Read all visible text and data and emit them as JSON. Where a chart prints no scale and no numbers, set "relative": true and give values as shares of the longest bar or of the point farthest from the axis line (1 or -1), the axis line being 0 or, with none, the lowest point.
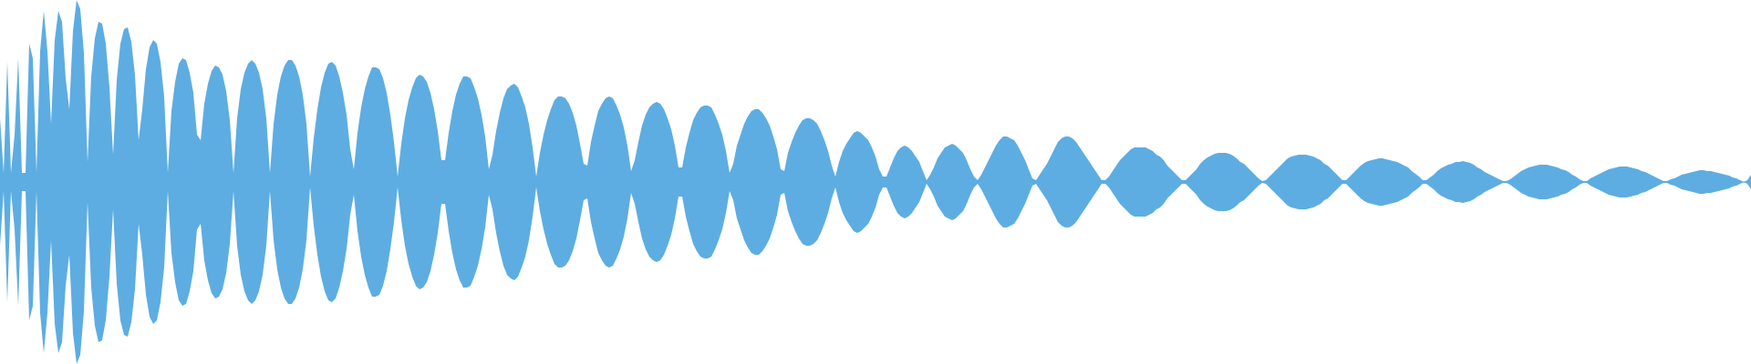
{
  "chart_data": {
    "type": "area",
    "relative": true,
    "ref_lines": [
      {
        "axis": "y",
        "value": 0,
        "color": "#5dade2"
      }
    ],
    "categories": [
      null,
      null,
      null,
      null,
      null,
      null,
      null,
      null,
      null,
      null,
      null,
      null,
      null,
      null,
      null,
      null,
      null,
      null,
      null,
      null,
      null,
      null,
      null,
      null,
      null,
      null,
      null,
      null,
      null,
      null,
      null,
      null,
      null,
      null,
      null,
      null,
      null,
      null,
      null,
      null,
      null,
      null,
      null,
      null,
      null,
      null,
      null,
      null,
      null,
      null,
      null,
      null,
      null,
      null,
      null,
      null,
      null,
      null,
      null,
      null,
      null,
      null,
      null,
      null,
      null,
      null,
      null,
      null,
      null,
      null,
      null,
      null,
      null,
      null,
      null,
      null,
      null,
      null,
      null,
      null,
      null,
      null,
      null,
      null,
      null,
      null,
      null,
      null,
      null,
      null,
      null,
      null,
      null,
      null,
      null,
      null,
      null,
      null,
      null,
      null,
      null,
      null,
      null,
      null,
      null,
      null,
      null,
      null,
      null,
      null,
      null,
      null,
      null,
      null,
      null,
      null,
      null,
      null,
      null,
      null,
      null,
      null,
      null,
      null,
      null,
      null,
      null,
      null,
      null,
      null,
      null,
      null,
      null,
      null,
      null,
      null,
      null,
      null,
      null,
      null,
      null,
      null,
      null,
      null,
      null,
      null,
      null,
      null,
      null,
      null,
      null,
      null,
      null,
      null,
      null,
      null,
      null,
      null,
      null,
      null,
      null,
      null,
      null,
      null,
      null,
      null,
      null,
      null,
      null,
      null,
      null,
      null,
      null,
      null,
      null,
      null,
      null,
      null,
      null,
      null,
      null,
      null,
      null,
      null,
      null,
      null,
      null,
      null,
      null,
      null,
      null,
      null,
      null,
      null,
      null,
      null,
      null,
      null,
      null,
      null,
      null,
      null,
      null,
      null,
      null,
      null,
      null,
      null,
      null,
      null,
      null,
      null,
      null,
      null,
      null,
      null,
      null,
      null,
      null,
      null,
      null,
      null,
      null,
      null,
      null,
      null,
      null,
      null,
      null,
      null,
      null,
      null,
      null,
      null,
      null,
      null,
      null,
      null,
      null,
      null,
      null,
      null,
      null,
      null,
      null,
      null,
      null,
      null,
      null,
      null,
      null,
      null,
      null,
      null,
      null,
      null,
      null,
      null,
      null,
      null,
      null,
      null,
      null,
      null,
      null,
      null,
      null,
      null,
      null,
      null,
      null,
      null,
      null,
      null,
      null,
      null,
      null,
      null,
      null,
      null,
      null,
      null,
      null,
      null,
      null,
      null,
      null,
      null,
      null,
      null,
      null,
      null,
      null,
      null,
      null,
      null,
      null,
      null,
      null,
      null,
      null,
      null,
      null,
      null,
      null,
      null,
      null,
      null,
      null,
      null,
      null,
      null,
      null,
      null,
      null,
      null,
      null,
      null,
      null,
      null,
      null,
      null,
      null,
      null,
      null,
      null,
      null,
      null,
      null,
      null,
      null,
      null,
      null,
      null,
      null,
      null,
      null,
      null,
      null,
      null,
      null,
      null,
      null,
      null,
      null,
      null,
      null,
      null,
      null,
      null,
      null,
      null,
      null,
      null,
      null,
      null,
      null,
      null,
      null,
      null,
      null,
      null,
      null,
      null,
      null,
      null,
      null,
      null,
      null,
      null,
      null,
      null,
      null,
      null,
      null,
      null,
      null,
      null,
      null,
      null,
      null,
      null,
      null,
      null,
      null,
      null,
      null,
      null,
      null,
      null,
      null,
      null,
      null,
      null,
      null,
      null,
      null,
      null,
      null,
      null,
      null,
      null,
      null,
      null,
      null,
      null,
      null,
      null,
      null,
      null,
      null,
      null,
      null,
      null,
      null,
      null,
      null,
      null,
      null,
      null,
      null,
      null,
      null,
      null,
      null,
      null,
      null,
      null,
      null,
      null,
      null,
      null,
      null,
      null,
      null,
      null,
      null,
      null,
      null,
      null,
      null,
      null,
      null,
      null,
      null,
      null,
      null,
      null,
      null,
      null,
      null,
      null,
      null,
      null,
      null,
      null,
      null,
      null,
      null,
      null,
      null,
      null,
      null,
      null,
      null,
      null,
      null,
      null,
      null,
      null,
      null,
      null,
      null,
      null,
      null,
      null,
      null,
      null,
      null,
      null,
      null
    ],
    "series": [
      {
        "color": "#5dade2",
        "values": [
          0.35,
          0.05,
          0.66,
          0.05,
          0.26,
          0.68,
          0.05,
          0.05,
          0.76,
          0.68,
          0.05,
          0.72,
          0.94,
          0.72,
          0.32,
          0.78,
          0.94,
          0.88,
          0.57,
          0.4,
          0.83,
          1.0,
          0.95,
          0.71,
          0.11,
          0.58,
          0.79,
          0.88,
          0.87,
          0.76,
          0.52,
          0.15,
          0.56,
          0.76,
          0.84,
          0.85,
          0.77,
          0.59,
          0.23,
          0.4,
          0.62,
          0.74,
          0.78,
          0.76,
          0.66,
          0.47,
          0.05,
          0.39,
          0.55,
          0.65,
          0.68,
          0.67,
          0.6,
          0.49,
          0.26,
          0.23,
          0.43,
          0.54,
          0.61,
          0.64,
          0.63,
          0.59,
          0.5,
          0.34,
          0.05,
          0.35,
          0.51,
          0.6,
          0.65,
          0.67,
          0.65,
          0.6,
          0.51,
          0.35,
          0.05,
          0.32,
          0.48,
          0.58,
          0.64,
          0.67,
          0.67,
          0.64,
          0.58,
          0.48,
          0.32,
          0.03,
          0.24,
          0.4,
          0.52,
          0.6,
          0.65,
          0.66,
          0.64,
          0.58,
          0.49,
          0.37,
          0.18,
          0.07,
          0.27,
          0.41,
          0.51,
          0.58,
          0.63,
          0.63,
          0.62,
          0.57,
          0.49,
          0.37,
          0.22,
          0.03,
          0.21,
          0.35,
          0.45,
          0.52,
          0.57,
          0.59,
          0.58,
          0.55,
          0.49,
          0.4,
          0.28,
          0.12,
          0.12,
          0.27,
          0.39,
          0.48,
          0.54,
          0.58,
          0.58,
          0.57,
          0.52,
          0.46,
          0.37,
          0.25,
          0.07,
          0.15,
          0.28,
          0.38,
          0.46,
          0.51,
          0.53,
          0.54,
          0.52,
          0.47,
          0.41,
          0.32,
          0.19,
          0.03,
          0.16,
          0.26,
          0.34,
          0.4,
          0.45,
          0.47,
          0.47,
          0.46,
          0.43,
          0.38,
          0.31,
          0.21,
          0.1,
          0.09,
          0.22,
          0.31,
          0.39,
          0.43,
          0.46,
          0.47,
          0.46,
          0.42,
          0.37,
          0.3,
          0.2,
          0.06,
          0.12,
          0.22,
          0.31,
          0.37,
          0.41,
          0.43,
          0.44,
          0.43,
          0.4,
          0.35,
          0.29,
          0.2,
          0.08,
          0.08,
          0.19,
          0.27,
          0.34,
          0.38,
          0.41,
          0.42,
          0.42,
          0.41,
          0.37,
          0.32,
          0.26,
          0.17,
          0.05,
          0.1,
          0.2,
          0.26,
          0.32,
          0.36,
          0.39,
          0.4,
          0.4,
          0.38,
          0.35,
          0.31,
          0.25,
          0.18,
          0.07,
          0.06,
          0.16,
          0.22,
          0.27,
          0.31,
          0.34,
          0.35,
          0.35,
          0.34,
          0.32,
          0.28,
          0.23,
          0.17,
          0.09,
          0.03,
          0.11,
          0.17,
          0.21,
          0.24,
          0.27,
          0.28,
          0.27,
          0.25,
          0.23,
          0.19,
          0.14,
          0.07,
          0.03,
          0.03,
          0.08,
          0.13,
          0.17,
          0.19,
          0.2,
          0.19,
          0.17,
          0.14,
          0.11,
          0.06,
          0.01,
          0.04,
          0.08,
          0.13,
          0.16,
          0.19,
          0.2,
          0.21,
          0.2,
          0.18,
          0.16,
          0.12,
          0.07,
          0.03,
          0.01,
          0.04,
          0.08,
          0.12,
          0.16,
          0.2,
          0.23,
          0.25,
          0.25,
          0.24,
          0.23,
          0.2,
          0.16,
          0.12,
          0.07,
          0.02,
          0.01,
          0.04,
          0.07,
          0.1,
          0.14,
          0.18,
          0.22,
          0.24,
          0.25,
          0.25,
          0.24,
          0.22,
          0.19,
          0.16,
          0.13,
          0.1,
          0.07,
          0.04,
          0.01,
          0.01,
          0.03,
          0.06,
          0.09,
          0.12,
          0.14,
          0.16,
          0.18,
          0.19,
          0.19,
          0.19,
          0.19,
          0.18,
          0.17,
          0.15,
          0.14,
          0.12,
          0.09,
          0.07,
          0.05,
          0.03,
          0.01,
          0.01,
          0.03,
          0.05,
          0.07,
          0.1,
          0.12,
          0.135,
          0.145,
          0.155,
          0.16,
          0.16,
          0.16,
          0.155,
          0.145,
          0.13,
          0.11,
          0.1,
          0.08,
          0.06,
          0.04,
          0.02,
          0.005,
          0.01,
          0.03,
          0.05,
          0.07,
          0.09,
          0.11,
          0.13,
          0.14,
          0.145,
          0.15,
          0.15,
          0.15,
          0.145,
          0.14,
          0.13,
          0.12,
          0.1,
          0.09,
          0.07,
          0.05,
          0.03,
          0.01,
          0.01,
          0.03,
          0.05,
          0.07,
          0.09,
          0.105,
          0.115,
          0.12,
          0.125,
          0.13,
          0.13,
          0.125,
          0.12,
          0.115,
          0.11,
          0.1,
          0.09,
          0.08,
          0.06,
          0.045,
          0.03,
          0.01,
          0.01,
          0.025,
          0.04,
          0.06,
          0.075,
          0.085,
          0.095,
          0.1,
          0.11,
          0.11,
          0.115,
          0.11,
          0.105,
          0.095,
          0.08,
          0.07,
          0.055,
          0.045,
          0.035,
          0.025,
          0.015,
          0.005,
          0.005,
          0.015,
          0.03,
          0.045,
          0.06,
          0.07,
          0.08,
          0.085,
          0.09,
          0.095,
          0.095,
          0.095,
          0.09,
          0.085,
          0.08,
          0.07,
          0.065,
          0.055,
          0.04,
          0.03,
          0.015,
          0.005,
          0.005,
          0.02,
          0.03,
          0.04,
          0.05,
          0.06,
          0.07,
          0.075,
          0.08,
          0.085,
          0.085,
          0.085,
          0.08,
          0.075,
          0.07,
          0.06,
          0.055,
          0.045,
          0.035,
          0.025,
          0.015,
          0.005,
          0.005,
          0.015,
          0.02,
          0.03,
          0.04,
          0.045,
          0.05,
          0.055,
          0.06,
          0.065,
          0.065,
          0.06,
          0.06,
          0.055,
          0.05,
          0.045,
          0.04,
          0.035,
          0.025,
          0.02,
          0.01,
          0,
          0.01,
          0.04
        ]
      },
      {
        "color": "#5dade2",
        "values": [
          -0.35,
          -0.05,
          -0.66,
          -0.05,
          -0.26,
          -0.68,
          -0.05,
          -0.05,
          -0.76,
          -0.68,
          -0.05,
          -0.72,
          -0.94,
          -0.72,
          -0.32,
          -0.78,
          -0.94,
          -0.88,
          -0.57,
          -0.4,
          -0.83,
          -1.0,
          -0.95,
          -0.71,
          -0.11,
          -0.58,
          -0.79,
          -0.88,
          -0.87,
          -0.76,
          -0.52,
          -0.15,
          -0.56,
          -0.76,
          -0.84,
          -0.85,
          -0.77,
          -0.59,
          -0.23,
          -0.4,
          -0.62,
          -0.74,
          -0.78,
          -0.76,
          -0.66,
          -0.47,
          -0.05,
          -0.39,
          -0.55,
          -0.65,
          -0.68,
          -0.67,
          -0.6,
          -0.49,
          -0.26,
          -0.23,
          -0.43,
          -0.54,
          -0.61,
          -0.64,
          -0.63,
          -0.59,
          -0.5,
          -0.34,
          -0.05,
          -0.35,
          -0.51,
          -0.6,
          -0.65,
          -0.67,
          -0.65,
          -0.6,
          -0.51,
          -0.35,
          -0.05,
          -0.32,
          -0.48,
          -0.58,
          -0.64,
          -0.67,
          -0.67,
          -0.64,
          -0.58,
          -0.48,
          -0.32,
          -0.03,
          -0.24,
          -0.4,
          -0.52,
          -0.6,
          -0.65,
          -0.66,
          -0.64,
          -0.58,
          -0.49,
          -0.37,
          -0.18,
          -0.07,
          -0.27,
          -0.41,
          -0.51,
          -0.58,
          -0.63,
          -0.63,
          -0.62,
          -0.57,
          -0.49,
          -0.37,
          -0.22,
          -0.03,
          -0.21,
          -0.35,
          -0.45,
          -0.52,
          -0.57,
          -0.59,
          -0.58,
          -0.55,
          -0.49,
          -0.4,
          -0.28,
          -0.12,
          -0.12,
          -0.27,
          -0.39,
          -0.48,
          -0.54,
          -0.58,
          -0.58,
          -0.57,
          -0.52,
          -0.46,
          -0.37,
          -0.25,
          -0.07,
          -0.15,
          -0.28,
          -0.38,
          -0.46,
          -0.51,
          -0.53,
          -0.54,
          -0.52,
          -0.47,
          -0.41,
          -0.32,
          -0.19,
          -0.03,
          -0.16,
          -0.26,
          -0.34,
          -0.4,
          -0.45,
          -0.47,
          -0.47,
          -0.46,
          -0.43,
          -0.38,
          -0.31,
          -0.21,
          -0.1,
          -0.09,
          -0.22,
          -0.31,
          -0.39,
          -0.43,
          -0.46,
          -0.47,
          -0.46,
          -0.42,
          -0.37,
          -0.3,
          -0.2,
          -0.06,
          -0.12,
          -0.22,
          -0.31,
          -0.37,
          -0.41,
          -0.43,
          -0.44,
          -0.43,
          -0.4,
          -0.35,
          -0.29,
          -0.2,
          -0.08,
          -0.08,
          -0.19,
          -0.27,
          -0.34,
          -0.38,
          -0.41,
          -0.42,
          -0.42,
          -0.41,
          -0.37,
          -0.32,
          -0.26,
          -0.17,
          -0.05,
          -0.1,
          -0.2,
          -0.26,
          -0.32,
          -0.36,
          -0.39,
          -0.4,
          -0.4,
          -0.38,
          -0.35,
          -0.31,
          -0.25,
          -0.18,
          -0.07,
          -0.06,
          -0.16,
          -0.22,
          -0.27,
          -0.31,
          -0.34,
          -0.35,
          -0.35,
          -0.34,
          -0.32,
          -0.28,
          -0.23,
          -0.17,
          -0.09,
          -0.03,
          -0.11,
          -0.17,
          -0.21,
          -0.24,
          -0.27,
          -0.28,
          -0.27,
          -0.25,
          -0.23,
          -0.19,
          -0.14,
          -0.07,
          -0.03,
          -0.03,
          -0.08,
          -0.13,
          -0.17,
          -0.19,
          -0.2,
          -0.19,
          -0.17,
          -0.14,
          -0.11,
          -0.06,
          -0.01,
          -0.04,
          -0.08,
          -0.13,
          -0.16,
          -0.19,
          -0.2,
          -0.21,
          -0.2,
          -0.18,
          -0.16,
          -0.12,
          -0.07,
          -0.03,
          -0.01,
          -0.04,
          -0.08,
          -0.12,
          -0.16,
          -0.2,
          -0.23,
          -0.25,
          -0.25,
          -0.24,
          -0.23,
          -0.2,
          -0.16,
          -0.12,
          -0.07,
          -0.02,
          -0.01,
          -0.04,
          -0.07,
          -0.1,
          -0.14,
          -0.18,
          -0.22,
          -0.24,
          -0.25,
          -0.25,
          -0.24,
          -0.22,
          -0.19,
          -0.16,
          -0.13,
          -0.1,
          -0.07,
          -0.04,
          -0.01,
          -0.01,
          -0.03,
          -0.06,
          -0.09,
          -0.12,
          -0.14,
          -0.16,
          -0.18,
          -0.19,
          -0.19,
          -0.19,
          -0.19,
          -0.18,
          -0.17,
          -0.15,
          -0.14,
          -0.12,
          -0.09,
          -0.07,
          -0.05,
          -0.03,
          -0.01,
          -0.01,
          -0.03,
          -0.05,
          -0.07,
          -0.1,
          -0.12,
          -0.135,
          -0.145,
          -0.155,
          -0.16,
          -0.16,
          -0.16,
          -0.155,
          -0.145,
          -0.13,
          -0.11,
          -0.1,
          -0.08,
          -0.06,
          -0.04,
          -0.02,
          -0.005,
          -0.01,
          -0.03,
          -0.05,
          -0.07,
          -0.09,
          -0.11,
          -0.13,
          -0.14,
          -0.145,
          -0.15,
          -0.15,
          -0.15,
          -0.145,
          -0.14,
          -0.13,
          -0.12,
          -0.1,
          -0.09,
          -0.07,
          -0.05,
          -0.03,
          -0.01,
          -0.01,
          -0.03,
          -0.05,
          -0.07,
          -0.09,
          -0.105,
          -0.115,
          -0.12,
          -0.125,
          -0.13,
          -0.13,
          -0.125,
          -0.12,
          -0.115,
          -0.11,
          -0.1,
          -0.09,
          -0.08,
          -0.06,
          -0.045,
          -0.03,
          -0.01,
          -0.01,
          -0.025,
          -0.04,
          -0.06,
          -0.075,
          -0.085,
          -0.095,
          -0.1,
          -0.11,
          -0.11,
          -0.115,
          -0.11,
          -0.105,
          -0.095,
          -0.08,
          -0.07,
          -0.055,
          -0.045,
          -0.035,
          -0.025,
          -0.015,
          -0.005,
          -0.005,
          -0.015,
          -0.03,
          -0.045,
          -0.06,
          -0.07,
          -0.08,
          -0.085,
          -0.09,
          -0.095,
          -0.095,
          -0.095,
          -0.09,
          -0.085,
          -0.08,
          -0.07,
          -0.065,
          -0.055,
          -0.04,
          -0.03,
          -0.015,
          -0.005,
          -0.005,
          -0.02,
          -0.03,
          -0.04,
          -0.05,
          -0.06,
          -0.07,
          -0.075,
          -0.08,
          -0.085,
          -0.085,
          -0.085,
          -0.08,
          -0.075,
          -0.07,
          -0.06,
          -0.055,
          -0.045,
          -0.035,
          -0.025,
          -0.015,
          -0.005,
          -0.005,
          -0.015,
          -0.02,
          -0.03,
          -0.04,
          -0.045,
          -0.05,
          -0.055,
          -0.06,
          -0.065,
          -0.065,
          -0.06,
          -0.06,
          -0.055,
          -0.05,
          -0.045,
          -0.04,
          -0.035,
          -0.025,
          -0.02,
          -0.01,
          0,
          -0.01,
          -0.04
        ]
      }
    ]
  }
}
